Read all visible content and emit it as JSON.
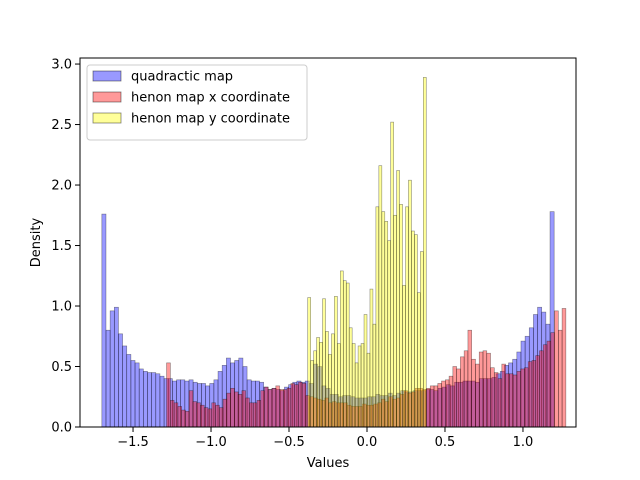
{
  "chart_data": {
    "type": "histogram",
    "xlabel": "Values",
    "ylabel": "Density",
    "xlim": [
      -1.84,
      1.34
    ],
    "ylim": [
      0,
      3.05
    ],
    "xticks": [
      -1.5,
      -1.0,
      -0.5,
      0.0,
      0.5,
      1.0
    ],
    "xtick_labels": [
      "−1.5",
      "−1.0",
      "−0.5",
      "0.0",
      "0.5",
      "1.0"
    ],
    "yticks": [
      0.0,
      0.5,
      1.0,
      1.5,
      2.0,
      2.5,
      3.0
    ],
    "ytick_labels": [
      "0.0",
      "0.5",
      "1.0",
      "1.5",
      "2.0",
      "2.5",
      "3.0"
    ],
    "grid": false,
    "legend_position": "upper-left",
    "series": [
      {
        "name": "quadractic map",
        "color": "#0000ff",
        "alpha": 0.4,
        "range": [
          -1.7,
          1.2
        ],
        "values": [
          1.76,
          0.8,
          0.96,
          0.99,
          0.77,
          0.67,
          0.6,
          0.55,
          0.53,
          0.48,
          0.46,
          0.45,
          0.45,
          0.44,
          0.42,
          0.4,
          0.4,
          0.38,
          0.39,
          0.39,
          0.38,
          0.39,
          0.37,
          0.36,
          0.36,
          0.34,
          0.36,
          0.39,
          0.46,
          0.51,
          0.57,
          0.53,
          0.55,
          0.57,
          0.5,
          0.39,
          0.38,
          0.38,
          0.37,
          0.33,
          0.31,
          0.32,
          0.31,
          0.3,
          0.33,
          0.35,
          0.37,
          0.38,
          0.37,
          0.38,
          0.36,
          0.52,
          0.5,
          0.34,
          0.32,
          0.27,
          0.27,
          0.25,
          0.26,
          0.26,
          0.25,
          0.24,
          0.24,
          0.24,
          0.25,
          0.25,
          0.27,
          0.26,
          0.26,
          0.28,
          0.26,
          0.28,
          0.3,
          0.29,
          0.29,
          0.3,
          0.3,
          0.3,
          0.31,
          0.31,
          0.3,
          0.32,
          0.33,
          0.35,
          0.34,
          0.37,
          0.37,
          0.38,
          0.38,
          0.38,
          0.37,
          0.4,
          0.4,
          0.4,
          0.41,
          0.44,
          0.46,
          0.51,
          0.53,
          0.56,
          0.62,
          0.71,
          0.75,
          0.82,
          0.93,
          0.99,
          0.95,
          0.85,
          1.78
        ]
      },
      {
        "name": "henon map x coordinate",
        "color": "#ff0000",
        "alpha": 0.4,
        "range": [
          -1.285,
          1.275
        ],
        "values": [
          0.53,
          0.22,
          0.2,
          0.17,
          0.14,
          0.13,
          0.3,
          0.21,
          0.2,
          0.18,
          0.16,
          0.15,
          0.2,
          0.18,
          0.16,
          0.23,
          0.28,
          0.32,
          0.29,
          0.27,
          0.3,
          0.24,
          0.2,
          0.2,
          0.22,
          0.3,
          0.33,
          0.31,
          0.32,
          0.34,
          0.31,
          0.31,
          0.32,
          0.36,
          0.35,
          0.37,
          0.36,
          0.26,
          0.25,
          0.24,
          0.23,
          0.22,
          0.24,
          0.2,
          0.21,
          0.2,
          0.2,
          0.2,
          0.18,
          0.17,
          0.17,
          0.17,
          0.19,
          0.18,
          0.18,
          0.19,
          0.2,
          0.23,
          0.21,
          0.25,
          0.23,
          0.24,
          0.27,
          0.3,
          0.28,
          0.29,
          0.32,
          0.32,
          0.31,
          0.32,
          0.34,
          0.34,
          0.36,
          0.38,
          0.39,
          0.42,
          0.5,
          0.48,
          0.58,
          0.63,
          0.8,
          0.56,
          0.52,
          0.62,
          0.63,
          0.61,
          0.49,
          0.45,
          0.4,
          0.52,
          0.44,
          0.44,
          0.43,
          0.46,
          0.48,
          0.49,
          0.54,
          0.55,
          0.59,
          0.63,
          0.68,
          0.71,
          0.78,
          0.96,
          0.8,
          0.98
        ]
      },
      {
        "name": "henon map y coordinate",
        "color": "#ffff00",
        "alpha": 0.4,
        "range": [
          -0.38,
          0.38
        ],
        "values": [
          1.07,
          0.55,
          0.63,
          0.74,
          0.7,
          1.06,
          0.79,
          0.6,
          0.77,
          1.08,
          0.69,
          1.29,
          1.21,
          1.19,
          0.82,
          0.69,
          0.53,
          0.67,
          0.69,
          0.93,
          0.61,
          1.14,
          0.85,
          1.82,
          2.16,
          1.78,
          1.7,
          1.54,
          2.52,
          1.75,
          2.12,
          1.84,
          1.17,
          1.82,
          2.04,
          1.62,
          1.59,
          1.11,
          1.45,
          2.89
        ]
      }
    ]
  }
}
